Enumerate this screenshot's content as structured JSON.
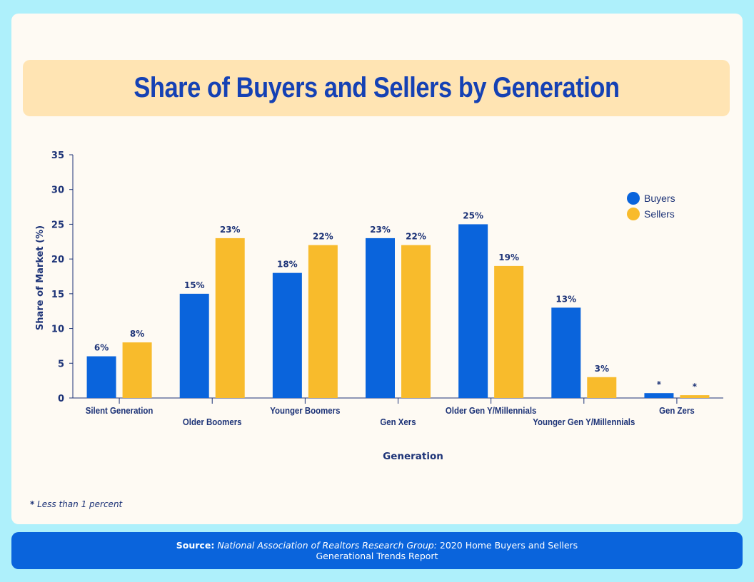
{
  "title": "Share of Buyers and Sellers by Generation",
  "footnote": {
    "marker": "*",
    "text": "Less than 1 percent"
  },
  "source": {
    "label": "Source:",
    "org": "National Association of Realtors Research Group:",
    "report_line1": "2020 Home Buyers and Sellers",
    "report_line2": "Generational Trends Report"
  },
  "colors": {
    "buyers": "#0a64dc",
    "sellers": "#f8bb2c",
    "axis": "#1d3377"
  },
  "chart_data": {
    "type": "bar",
    "title": "Share of Buyers and Sellers by Generation",
    "xlabel": "Generation",
    "ylabel": "Share of Market (%)",
    "ylim": [
      0,
      35
    ],
    "yticks": [
      0,
      5,
      10,
      15,
      20,
      25,
      30,
      35
    ],
    "legend_position": "top-right",
    "categories": [
      "Silent Generation",
      "Older Boomers",
      "Younger Boomers",
      "Gen Xers",
      "Older Gen Y/Millennials",
      "Younger Gen Y/Millennials",
      "Gen Zers"
    ],
    "series": [
      {
        "name": "Buyers",
        "values": [
          6,
          15,
          18,
          23,
          25,
          13,
          0.7
        ],
        "labels": [
          "6%",
          "15%",
          "18%",
          "23%",
          "25%",
          "13%",
          "*"
        ]
      },
      {
        "name": "Sellers",
        "values": [
          8,
          23,
          22,
          22,
          19,
          3,
          0.4
        ],
        "labels": [
          "8%",
          "23%",
          "22%",
          "22%",
          "19%",
          "3%",
          "*"
        ]
      }
    ]
  }
}
